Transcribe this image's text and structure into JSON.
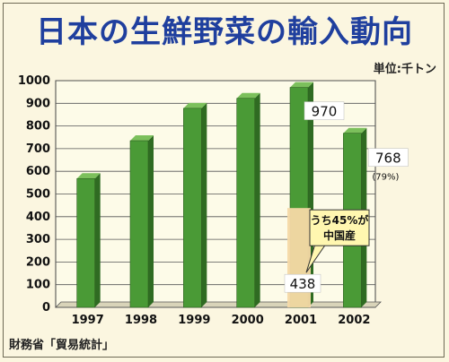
{
  "chart_data": {
    "type": "bar",
    "title": "日本の生鮮野菜の輸入動向",
    "unit_label": "単位:千トン",
    "source": "財務省「貿易統計」",
    "categories": [
      "1997",
      "1998",
      "1999",
      "2000",
      "2001",
      "2002"
    ],
    "values": [
      568,
      735,
      878,
      922,
      970,
      768
    ],
    "ylim": [
      0,
      1000
    ],
    "yticks": [
      0,
      100,
      200,
      300,
      400,
      500,
      600,
      700,
      800,
      900,
      1000
    ],
    "data_labels": [
      {
        "category": "2001",
        "text": "970"
      },
      {
        "category": "2002",
        "text": "768"
      }
    ],
    "sub_value": {
      "category": "2001",
      "value": 438,
      "text": "438"
    },
    "annotations": {
      "percent_2002": "(79%)",
      "callout_line1": "うち45%が",
      "callout_line2": "中国産"
    },
    "grid": true,
    "colors": {
      "bar": "#4a9a36",
      "bar_light": "#7cc05c",
      "bar_dark": "#2f6b22",
      "sub_bar": "#f6d9a6",
      "plot_bg": "#fdfbe8",
      "title": "#1f3f9e"
    }
  }
}
